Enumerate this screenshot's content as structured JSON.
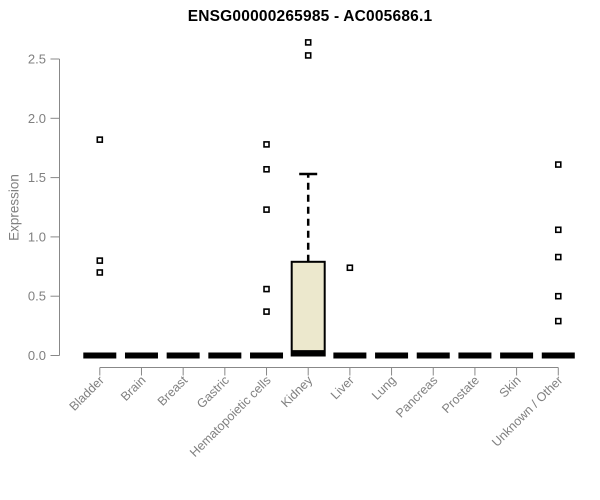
{
  "page": {
    "background": "#ffffff"
  },
  "chart_data": {
    "type": "boxplot",
    "title": "ENSG00000265985 - AC005686.1",
    "xlabel": "",
    "ylabel": "Expression",
    "ylim": [
      0.0,
      2.5
    ],
    "yticks": [
      "0.0",
      "0.5",
      "1.0",
      "1.5",
      "2.0",
      "2.5"
    ],
    "grid": false,
    "legend": "none",
    "categories": [
      "Bladder",
      "Brain",
      "Breast",
      "Gastric",
      "Hematopoietic cells",
      "Kidney",
      "Liver",
      "Lung",
      "Pancreas",
      "Prostate",
      "Skin",
      "Unknown / Other"
    ],
    "series": [
      {
        "name": "Bladder",
        "q1": 0,
        "median": 0,
        "q3": 0,
        "whisker_low": 0,
        "whisker_high": 0,
        "outliers": [
          1.82,
          0.8,
          0.7
        ]
      },
      {
        "name": "Brain",
        "q1": 0,
        "median": 0,
        "q3": 0,
        "whisker_low": 0,
        "whisker_high": 0,
        "outliers": []
      },
      {
        "name": "Breast",
        "q1": 0,
        "median": 0,
        "q3": 0,
        "whisker_low": 0,
        "whisker_high": 0,
        "outliers": []
      },
      {
        "name": "Gastric",
        "q1": 0,
        "median": 0,
        "q3": 0,
        "whisker_low": 0,
        "whisker_high": 0,
        "outliers": []
      },
      {
        "name": "Hematopoietic cells",
        "q1": 0,
        "median": 0,
        "q3": 0,
        "whisker_low": 0,
        "whisker_high": 0,
        "outliers": [
          1.78,
          1.57,
          1.23,
          0.56,
          0.37
        ]
      },
      {
        "name": "Kidney",
        "q1": 0,
        "median": 0.02,
        "q3": 0.79,
        "whisker_low": 0,
        "whisker_high": 1.53,
        "outliers": [
          2.64,
          2.53
        ]
      },
      {
        "name": "Liver",
        "q1": 0,
        "median": 0,
        "q3": 0,
        "whisker_low": 0,
        "whisker_high": 0,
        "outliers": [
          0.74
        ]
      },
      {
        "name": "Lung",
        "q1": 0,
        "median": 0,
        "q3": 0,
        "whisker_low": 0,
        "whisker_high": 0,
        "outliers": []
      },
      {
        "name": "Pancreas",
        "q1": 0,
        "median": 0,
        "q3": 0,
        "whisker_low": 0,
        "whisker_high": 0,
        "outliers": []
      },
      {
        "name": "Prostate",
        "q1": 0,
        "median": 0,
        "q3": 0,
        "whisker_low": 0,
        "whisker_high": 0,
        "outliers": []
      },
      {
        "name": "Skin",
        "q1": 0,
        "median": 0,
        "q3": 0,
        "whisker_low": 0,
        "whisker_high": 0,
        "outliers": []
      },
      {
        "name": "Unknown / Other",
        "q1": 0,
        "median": 0,
        "q3": 0,
        "whisker_low": 0,
        "whisker_high": 0,
        "outliers": [
          1.61,
          1.06,
          0.83,
          0.5,
          0.29
        ]
      }
    ],
    "colors": {
      "box_fill": "#ece8cd",
      "box_border": "#000000",
      "median": "#000000",
      "whisker": "#000000",
      "outlier_border": "#000000",
      "outlier_fill": "#ffffff",
      "axis_line": "#888888",
      "axis_text": "#808080",
      "title": "#000000"
    }
  }
}
